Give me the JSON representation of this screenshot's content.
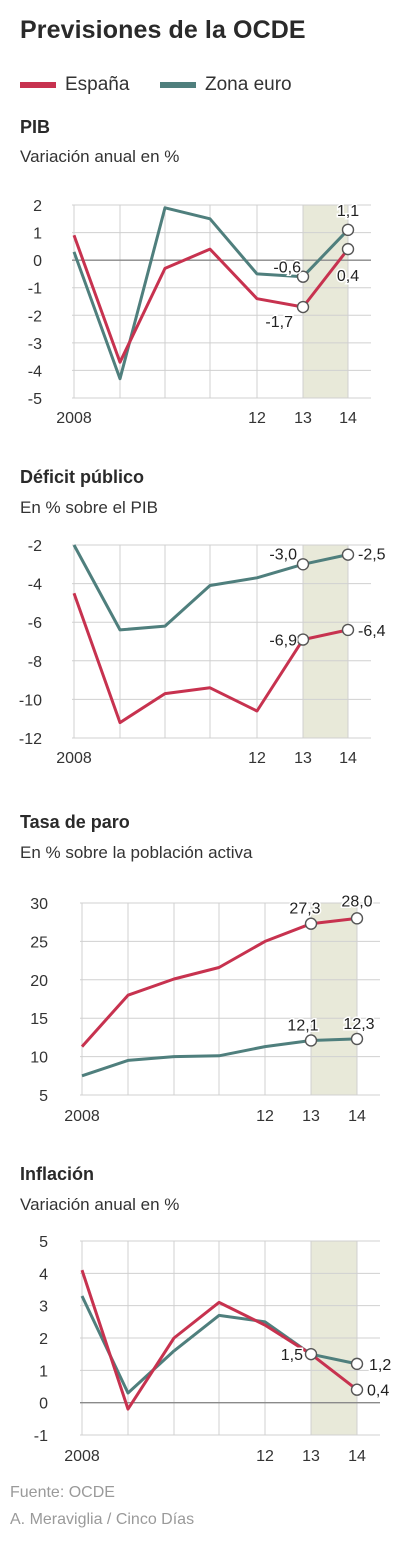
{
  "title": "Previsiones de la OCDE",
  "colors": {
    "spain": "#c7324f",
    "euro": "#4f7f7d",
    "shade": "#e8e9d9",
    "grid": "#d0d0d0",
    "zero": "#8a8a8a"
  },
  "legend": [
    {
      "name": "España",
      "color": "#c7324f"
    },
    {
      "name": "Zona euro",
      "color": "#4f7f7d"
    }
  ],
  "footer": {
    "source": "Fuente: OCDE",
    "credit": "A. Meraviglia / Cinco Días"
  },
  "chart_data": [
    {
      "type": "line",
      "title": "PIB",
      "subtitle": "Variación anual en %",
      "x": [
        2008,
        2009,
        2010,
        2011,
        2012,
        2013,
        2014
      ],
      "x_tick_labels": [
        "2008",
        "",
        "",
        "",
        "12",
        "13",
        "14"
      ],
      "ylim": [
        -5,
        2
      ],
      "y_ticks": [
        2,
        1,
        0,
        -1,
        -2,
        -3,
        -4,
        -5
      ],
      "zero_line": true,
      "forecast_shade": [
        2013,
        2014
      ],
      "series": [
        {
          "name": "España",
          "values": [
            0.9,
            -3.7,
            -0.3,
            0.4,
            -1.4,
            -1.7,
            0.4
          ]
        },
        {
          "name": "Zona euro",
          "values": [
            0.3,
            -4.3,
            1.9,
            1.5,
            -0.5,
            -0.6,
            1.1
          ]
        }
      ],
      "annotations": [
        {
          "series": "Zona euro",
          "x": 2013,
          "label": "-0,6"
        },
        {
          "series": "España",
          "x": 2013,
          "label": "-1,7"
        },
        {
          "series": "Zona euro",
          "x": 2014,
          "label": "1,1"
        },
        {
          "series": "España",
          "x": 2014,
          "label": "0,4"
        }
      ]
    },
    {
      "type": "line",
      "title": "Déficit público",
      "subtitle": "En % sobre el PIB",
      "x": [
        2008,
        2009,
        2010,
        2011,
        2012,
        2013,
        2014
      ],
      "x_tick_labels": [
        "2008",
        "",
        "",
        "",
        "12",
        "13",
        "14"
      ],
      "ylim": [
        -12,
        -2
      ],
      "y_ticks": [
        -2,
        -4,
        -6,
        -8,
        -10,
        -12
      ],
      "zero_line": false,
      "forecast_shade": [
        2013,
        2014
      ],
      "series": [
        {
          "name": "España",
          "values": [
            -4.5,
            -11.2,
            -9.7,
            -9.4,
            -10.6,
            -6.9,
            -6.4
          ]
        },
        {
          "name": "Zona euro",
          "values": [
            -2.0,
            -6.4,
            -6.2,
            -4.1,
            -3.7,
            -3.0,
            -2.5
          ]
        }
      ],
      "annotations": [
        {
          "series": "Zona euro",
          "x": 2013,
          "label": "-3,0"
        },
        {
          "series": "España",
          "x": 2013,
          "label": "-6,9"
        },
        {
          "series": "Zona euro",
          "x": 2014,
          "label": "-2,5"
        },
        {
          "series": "España",
          "x": 2014,
          "label": "-6,4"
        }
      ]
    },
    {
      "type": "line",
      "title": "Tasa de paro",
      "subtitle": "En % sobre la población activa",
      "x": [
        2008,
        2009,
        2010,
        2011,
        2012,
        2013,
        2014
      ],
      "x_tick_labels": [
        "2008",
        "",
        "",
        "",
        "12",
        "13",
        "14"
      ],
      "ylim": [
        5,
        30
      ],
      "y_ticks": [
        30,
        25,
        20,
        15,
        10,
        5
      ],
      "zero_line": false,
      "forecast_shade": [
        2013,
        2014
      ],
      "series": [
        {
          "name": "España",
          "values": [
            11.3,
            18.0,
            20.1,
            21.6,
            25.0,
            27.3,
            28.0
          ]
        },
        {
          "name": "Zona euro",
          "values": [
            7.5,
            9.5,
            10.0,
            10.1,
            11.3,
            12.1,
            12.3
          ]
        }
      ],
      "annotations": [
        {
          "series": "España",
          "x": 2013,
          "label": "27,3"
        },
        {
          "series": "España",
          "x": 2014,
          "label": "28,0"
        },
        {
          "series": "Zona euro",
          "x": 2013,
          "label": "12,1"
        },
        {
          "series": "Zona euro",
          "x": 2014,
          "label": "12,3"
        }
      ]
    },
    {
      "type": "line",
      "title": "Inflación",
      "subtitle": "Variación anual en %",
      "x": [
        2008,
        2009,
        2010,
        2011,
        2012,
        2013,
        2014
      ],
      "x_tick_labels": [
        "2008",
        "",
        "",
        "",
        "12",
        "13",
        "14"
      ],
      "ylim": [
        -1,
        5
      ],
      "y_ticks": [
        5,
        4,
        3,
        2,
        1,
        0,
        -1
      ],
      "zero_line": true,
      "forecast_shade": [
        2013,
        2014
      ],
      "series": [
        {
          "name": "España",
          "values": [
            4.1,
            -0.2,
            2.0,
            3.1,
            2.4,
            1.5,
            0.4
          ]
        },
        {
          "name": "Zona euro",
          "values": [
            3.3,
            0.3,
            1.6,
            2.7,
            2.5,
            1.5,
            1.2
          ]
        }
      ],
      "annotations": [
        {
          "series": "Zona euro",
          "x": 2013,
          "label": "1,5"
        },
        {
          "series": "Zona euro",
          "x": 2014,
          "label": "1,2"
        },
        {
          "series": "España",
          "x": 2014,
          "label": "0,4"
        }
      ]
    }
  ]
}
